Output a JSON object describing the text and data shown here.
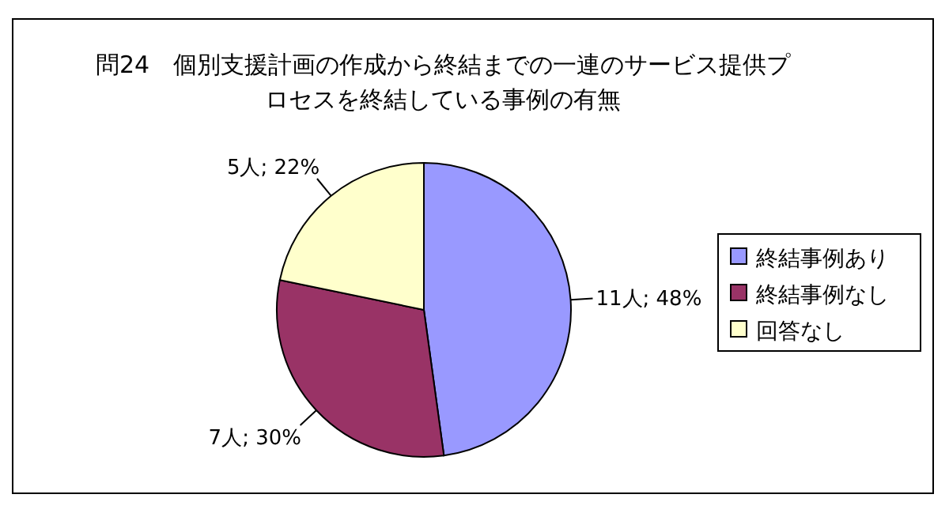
{
  "chart_data": {
    "type": "pie",
    "title": "問24　個別支援計画の作成から終結までの一連のサービス提供プロセスを終結している事例の有無",
    "categories": [
      "終結事例あり",
      "終結事例なし",
      "回答なし"
    ],
    "values": [
      11,
      7,
      5
    ],
    "value_labels": [
      "11人; 48%",
      "7人; 30%",
      "5人; 22%"
    ],
    "colors": [
      "#9999ff",
      "#993366",
      "#ffffcc"
    ],
    "legend": "right"
  }
}
